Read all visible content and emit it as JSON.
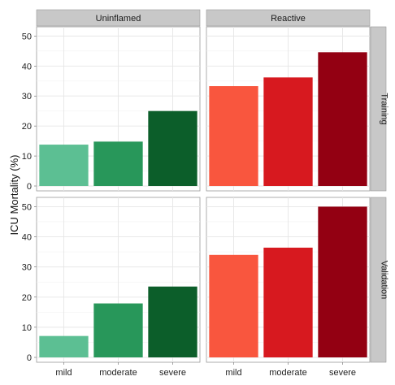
{
  "chart_data": {
    "type": "bar",
    "ylabel": "ICU Mortality (%)",
    "xlabel": "",
    "ylim": [
      0,
      52
    ],
    "yticks": [
      0,
      10,
      20,
      30,
      40,
      50
    ],
    "categories": [
      "mild",
      "moderate",
      "severe"
    ],
    "columns": [
      "Uninflamed",
      "Reactive"
    ],
    "rows": [
      "Training",
      "Validation"
    ],
    "colors": {
      "Uninflamed": [
        "#5cbf93",
        "#28975a",
        "#0c5e2a"
      ],
      "Reactive": [
        "#f9563e",
        "#d7191f",
        "#930012"
      ]
    },
    "panels": [
      {
        "column": "Uninflamed",
        "row": "Training",
        "values": [
          13.8,
          14.8,
          25.0
        ]
      },
      {
        "column": "Reactive",
        "row": "Training",
        "values": [
          33.3,
          36.2,
          44.6
        ]
      },
      {
        "column": "Uninflamed",
        "row": "Validation",
        "values": [
          7.1,
          17.9,
          23.5
        ]
      },
      {
        "column": "Reactive",
        "row": "Validation",
        "values": [
          34.0,
          36.4,
          50.0
        ]
      }
    ],
    "grid": true,
    "facet_layout": "2x2"
  }
}
